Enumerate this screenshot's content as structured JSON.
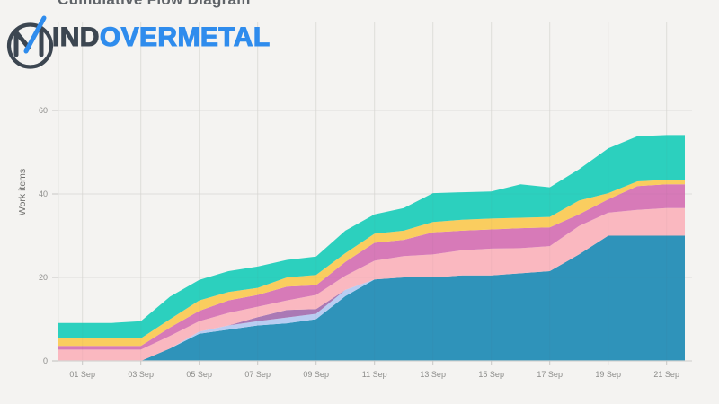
{
  "page": {
    "title": "Cumulative Flow Diagram",
    "background": "#f4f3f1"
  },
  "logo": {
    "mark_icon": "mindovermetal-monogram-icon",
    "text_dark": "IND",
    "text_blue": "OVERMETAL",
    "color_dark": "#3c4651",
    "color_blue": "#2f8ced"
  },
  "chart_data": {
    "type": "area",
    "stacked": true,
    "title": "Cumulative Flow Diagram",
    "xlabel": "",
    "ylabel": "Work items",
    "grid": true,
    "legend_position": "none",
    "x_days": [
      1,
      2,
      3,
      4,
      5,
      6,
      7,
      8,
      9,
      10,
      11,
      12,
      13,
      14,
      15,
      16,
      17,
      18,
      19,
      20,
      21
    ],
    "x_tick_days": [
      1,
      3,
      5,
      7,
      9,
      11,
      13,
      15,
      17,
      19,
      21
    ],
    "x_tick_labels": [
      "01 Sep",
      "03 Sep",
      "05 Sep",
      "07 Sep",
      "09 Sep",
      "11 Sep",
      "13 Sep",
      "15 Sep",
      "17 Sep",
      "19 Sep",
      "21 Sep"
    ],
    "y_ticks": [
      0,
      20,
      40,
      60
    ],
    "ylim": [
      0,
      81
    ],
    "series": [
      {
        "name": "blue",
        "color": "#2f93ba",
        "values": [
          0,
          0,
          0,
          3,
          6.5,
          7.5,
          8.5,
          9,
          10,
          15.5,
          19.5,
          20,
          20,
          20.5,
          20.5,
          21,
          21.5,
          25.5,
          30,
          30,
          30
        ]
      },
      {
        "name": "light-blue",
        "color": "#b9cdf2",
        "values": [
          0,
          0,
          0,
          0,
          0.5,
          1,
          1,
          1.4,
          1.3,
          1.5,
          0,
          0,
          0,
          0,
          0,
          0,
          0,
          0,
          0,
          0,
          0
        ]
      },
      {
        "name": "purple",
        "color": "#aa79b5",
        "values": [
          0,
          0,
          0,
          0,
          0,
          0,
          1,
          1.8,
          1.1,
          0,
          0,
          0,
          0,
          0,
          0,
          0,
          0,
          0,
          0,
          0,
          0
        ]
      },
      {
        "name": "pink",
        "color": "#fab8c0",
        "values": [
          2.7,
          2.7,
          2.7,
          3,
          2.5,
          3,
          2.5,
          2.3,
          3.4,
          3.4,
          4.5,
          5.1,
          5.5,
          6,
          6.4,
          6,
          6,
          6.8,
          5.5,
          6.2,
          6.6
        ]
      },
      {
        "name": "magenta",
        "color": "#d77ab8",
        "values": [
          0.9,
          0.9,
          0.9,
          2,
          2.5,
          3,
          2.8,
          3.3,
          2.3,
          3.3,
          4.3,
          3.9,
          5.3,
          4.7,
          4.6,
          4.8,
          4.5,
          2.8,
          3.2,
          5.7,
          5.7
        ]
      },
      {
        "name": "yellow",
        "color": "#facd5f",
        "values": [
          1.8,
          1.8,
          1.8,
          2,
          2.5,
          2,
          1.7,
          2.2,
          2.5,
          2.1,
          2.2,
          2.2,
          2.5,
          2.6,
          2.6,
          2.5,
          2.5,
          3.3,
          1.5,
          1.1,
          1.1
        ]
      },
      {
        "name": "teal",
        "color": "#2cd0be",
        "values": [
          3.7,
          3.7,
          4.1,
          5.4,
          4.9,
          5,
          5.1,
          4.2,
          4.4,
          5.4,
          4.6,
          5.4,
          6.9,
          6.6,
          6.5,
          8,
          7.1,
          7.5,
          10.7,
          10.8,
          10.7
        ]
      }
    ],
    "colors": {
      "gridline": "#e5e4e1",
      "gridline_overlay": "rgba(90,90,90,0.05)",
      "axis_line": "#d5d4d2",
      "tick_mark": "#c8c7c5",
      "tick_label": "#8d8d8b"
    }
  }
}
